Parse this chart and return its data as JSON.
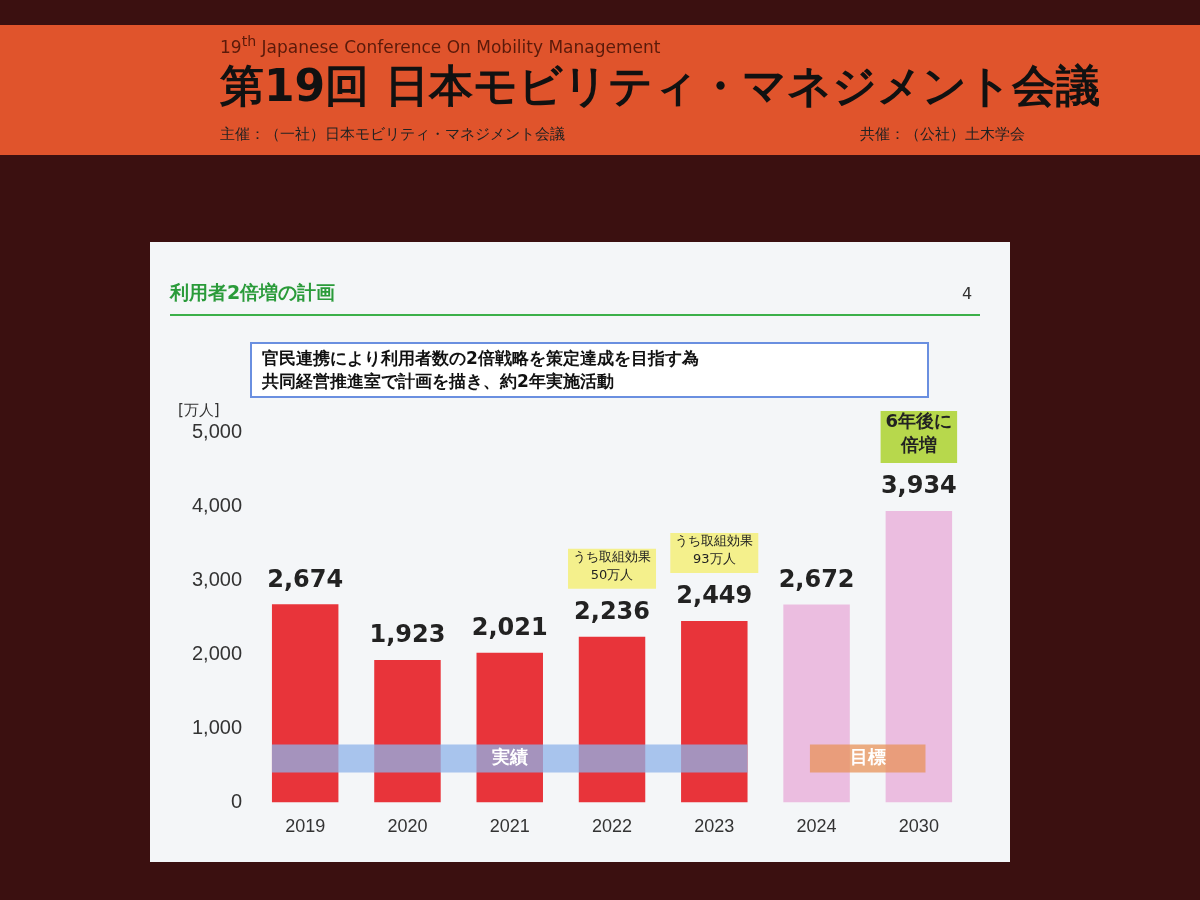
{
  "chart_data": {
    "type": "bar",
    "title": "利用者2倍増の計画",
    "subtitle": "官民連携により利用者数の2倍戦略を策定達成を目指す為共同経営推進室で計画を描き、約2年実施活動",
    "ylabel": "[万人]",
    "categories": [
      "2019",
      "2020",
      "2021",
      "2022",
      "2023",
      "2024",
      "2030"
    ],
    "values": [
      2674,
      1923,
      2021,
      2236,
      2449,
      2672,
      3934
    ],
    "colors": [
      "#e8343a",
      "#e8343a",
      "#e8343a",
      "#e8343a",
      "#e8343a",
      "#ebbde0",
      "#ebbde0"
    ],
    "ylim": [
      0,
      5000
    ],
    "yticks": [
      {
        "value": 0,
        "label": "0"
      },
      {
        "value": 1000,
        "label": "1,000"
      },
      {
        "value": 2000,
        "label": "2,000"
      },
      {
        "value": 3000,
        "label": "3,000"
      },
      {
        "value": 4000,
        "label": "4,000"
      },
      {
        "value": 5000,
        "label": "5,000"
      }
    ],
    "value_labels": [
      "2,674",
      "1,923",
      "2,021",
      "2,236",
      "2,449",
      "2,672",
      "3,934"
    ],
    "grid": false,
    "legend": false,
    "bands": [
      {
        "axis": "x",
        "from": "2019",
        "to": "2023",
        "label": "実績",
        "color": "#8fb3ea"
      },
      {
        "axis": "x",
        "from": "2024",
        "to": "2030",
        "label": "目標",
        "color": "#e8935a"
      }
    ],
    "annotations": [
      "うち取組効果50万人",
      "うち取組効果93万人",
      "6年後に倍増",
      "19$^{th}$ Japanese Conference On Mobility Management",
      "第19回 日本モビリティ・マネジメント会議",
      "主催：（一社）日本モビリティ・マネジメント会議",
      "共催：（公社）土木学会",
      "4"
    ]
  }
}
